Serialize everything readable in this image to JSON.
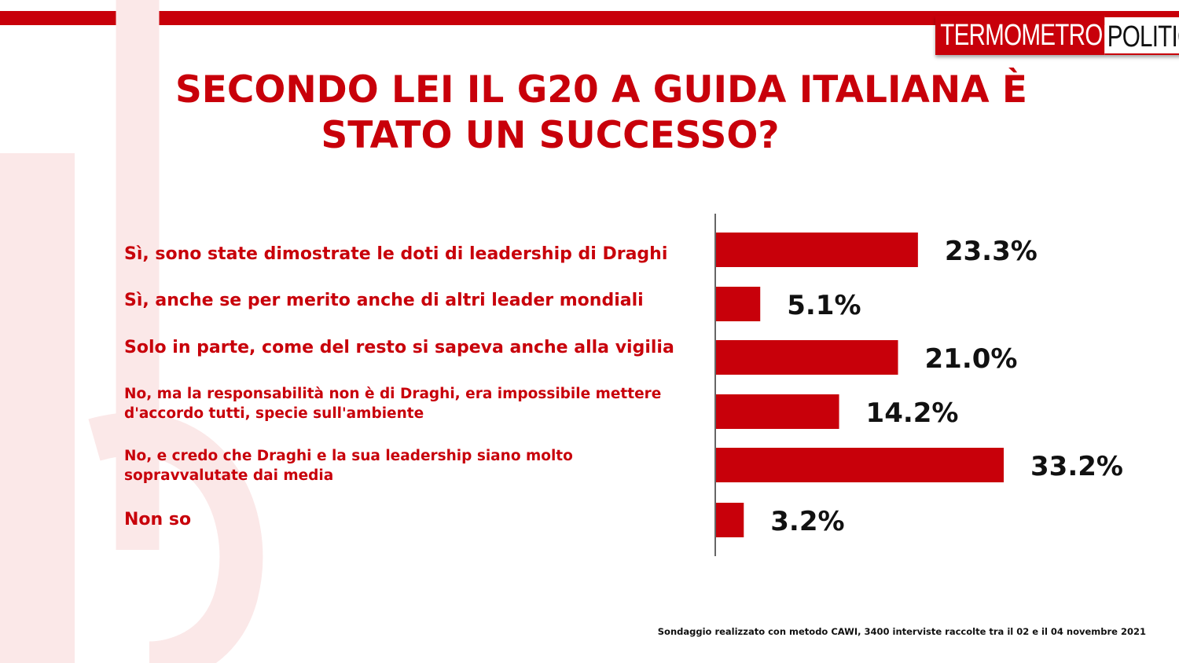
{
  "brand": {
    "logo_left": "TERMOMETRO",
    "logo_right": "POLITICO",
    "accent_color": "#c8000a"
  },
  "title": {
    "line1": "SECONDO LEI IL G20 A GUIDA ITALIANA È",
    "line2": "STATO UN SUCCESSO?"
  },
  "chart_data": {
    "type": "bar",
    "orientation": "horizontal",
    "categories": [
      "Sì, sono state dimostrate le doti di leadership di Draghi",
      "Sì, anche se per merito anche di altri leader mondiali",
      "Solo in parte, come del resto si sapeva anche alla vigilia",
      "No, ma la responsabilità  non è di Draghi, era impossibile mettere d'accordo tutti, specie sull'ambiente",
      "No, e credo che Draghi e la sua leadership siano molto sopravvalutate dai media",
      "Non so"
    ],
    "values": [
      23.3,
      5.1,
      21.0,
      14.2,
      33.2,
      3.2
    ],
    "value_labels": [
      "23.3%",
      "5.1%",
      "21.0%",
      "14.2%",
      "33.2%",
      "3.2%"
    ],
    "bar_color": "#c8000a",
    "grid": false,
    "legend": "none"
  },
  "footer": "Sondaggio realizzato con metodo CAWI, 3400 interviste raccolte tra il 02 e il 04 novembre 2021"
}
